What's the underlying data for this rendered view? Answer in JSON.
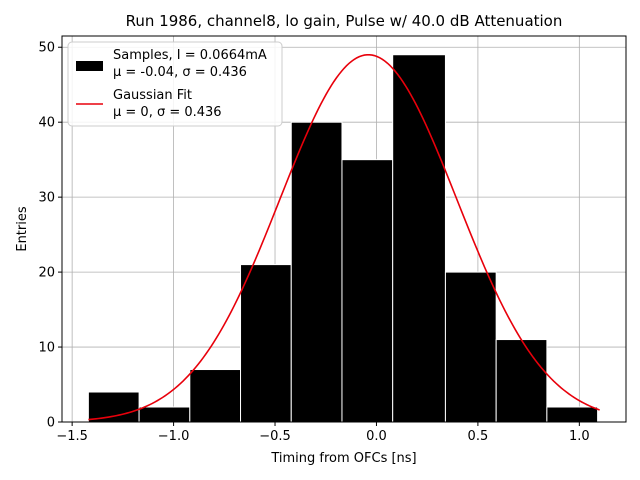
{
  "chart_data": {
    "type": "bar",
    "title": "Run 1986, channel8, lo gain, Pulse w/ 40.0 dB Attenuation",
    "xlabel": "Timing from OFCs [ns]",
    "ylabel": "Entries",
    "xlim": [
      -1.55,
      1.23
    ],
    "ylim": [
      0,
      51.5
    ],
    "grid": true,
    "legend_position": "top-left",
    "x_ticks": [
      -1.5,
      -1.0,
      -0.5,
      0.0,
      0.5,
      1.0
    ],
    "x_tick_labels": [
      "−1.5",
      "−1.0",
      "−0.5",
      "0.0",
      "0.5",
      "1.0"
    ],
    "y_ticks": [
      0,
      10,
      20,
      30,
      40,
      50
    ],
    "y_tick_labels": [
      "0",
      "10",
      "20",
      "30",
      "40",
      "50"
    ],
    "histogram": {
      "name_line1": "Samples, I = 0.0664mA",
      "name_line2": "μ = -0.04, σ = 0.436",
      "color": "#000000",
      "bin_edges": [
        -1.42,
        -1.17,
        -0.92,
        -0.67,
        -0.42,
        -0.17,
        0.08,
        0.34,
        0.59,
        0.84,
        1.09
      ],
      "counts": [
        4,
        2,
        7,
        21,
        40,
        35,
        49,
        20,
        11,
        2
      ]
    },
    "fit": {
      "name_line1": "Gaussian Fit",
      "name_line2": "μ = 0, σ = 0.436",
      "color": "#e8000b",
      "amplitude": 49,
      "mean": -0.04,
      "sigma": 0.436,
      "x_range": [
        -1.42,
        1.1
      ]
    }
  }
}
